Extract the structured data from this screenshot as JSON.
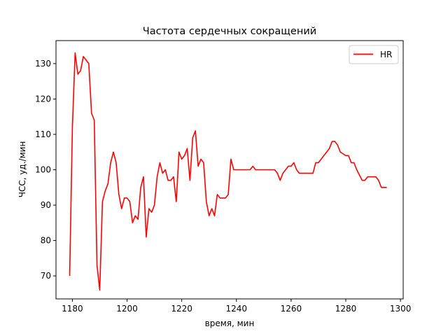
{
  "chart_data": {
    "type": "line",
    "title": "Частота сердечных сокращений",
    "xlabel": "время, мин",
    "ylabel": "ЧСС, уд./мин",
    "xlim": [
      1174,
      1301
    ],
    "ylim": [
      63.5,
      136.5
    ],
    "xticks": [
      1180,
      1200,
      1220,
      1240,
      1260,
      1280,
      1300
    ],
    "yticks": [
      70,
      80,
      90,
      100,
      110,
      120,
      130
    ],
    "grid": false,
    "legend_position": "top-right",
    "colors": {
      "HR": "#e41a1c"
    },
    "series": [
      {
        "name": "HR",
        "color": "#ff0000",
        "x": [
          1179,
          1180,
          1181,
          1182,
          1183,
          1184,
          1185,
          1186,
          1187,
          1188,
          1189,
          1190,
          1191,
          1192,
          1193,
          1194,
          1195,
          1196,
          1197,
          1198,
          1199,
          1200,
          1201,
          1202,
          1203,
          1204,
          1205,
          1206,
          1207,
          1208,
          1209,
          1210,
          1211,
          1212,
          1213,
          1214,
          1215,
          1216,
          1217,
          1218,
          1219,
          1220,
          1221,
          1222,
          1223,
          1224,
          1225,
          1226,
          1227,
          1228,
          1229,
          1230,
          1231,
          1232,
          1233,
          1234,
          1235,
          1236,
          1237,
          1238,
          1239,
          1240,
          1241,
          1242,
          1243,
          1244,
          1245,
          1246,
          1247,
          1248,
          1249,
          1250,
          1251,
          1252,
          1253,
          1254,
          1255,
          1256,
          1257,
          1258,
          1259,
          1260,
          1261,
          1262,
          1263,
          1264,
          1265,
          1266,
          1267,
          1268,
          1269,
          1270,
          1271,
          1272,
          1273,
          1274,
          1275,
          1276,
          1277,
          1278,
          1279,
          1280,
          1281,
          1282,
          1283,
          1284,
          1285,
          1286,
          1287,
          1288,
          1289,
          1290,
          1291,
          1292,
          1293,
          1294,
          1295
        ],
        "values": [
          70,
          112,
          133,
          127,
          128,
          132,
          131,
          130,
          116,
          114,
          73,
          66,
          91,
          94,
          96,
          102,
          105,
          102,
          93,
          89,
          92,
          92,
          91,
          85,
          87,
          86,
          95,
          98,
          81,
          89,
          88,
          90,
          98,
          102,
          99,
          100,
          97,
          97,
          98,
          91,
          105,
          103,
          104,
          106,
          97,
          109,
          111,
          101,
          103,
          102,
          91,
          87,
          89,
          87,
          93,
          92,
          92,
          92,
          93,
          103,
          100,
          100,
          100,
          100,
          100,
          100,
          100,
          101,
          100,
          100,
          100,
          100,
          100,
          100,
          100,
          100,
          99,
          97,
          99,
          100,
          101,
          101,
          102,
          100,
          99,
          99,
          99,
          99,
          99,
          99,
          102,
          102,
          103,
          104,
          105,
          106,
          108,
          108,
          107,
          105,
          104.5,
          104,
          104,
          102,
          102,
          100,
          98.5,
          97,
          97,
          98,
          98,
          98,
          98,
          97,
          95,
          95,
          95
        ]
      }
    ]
  }
}
